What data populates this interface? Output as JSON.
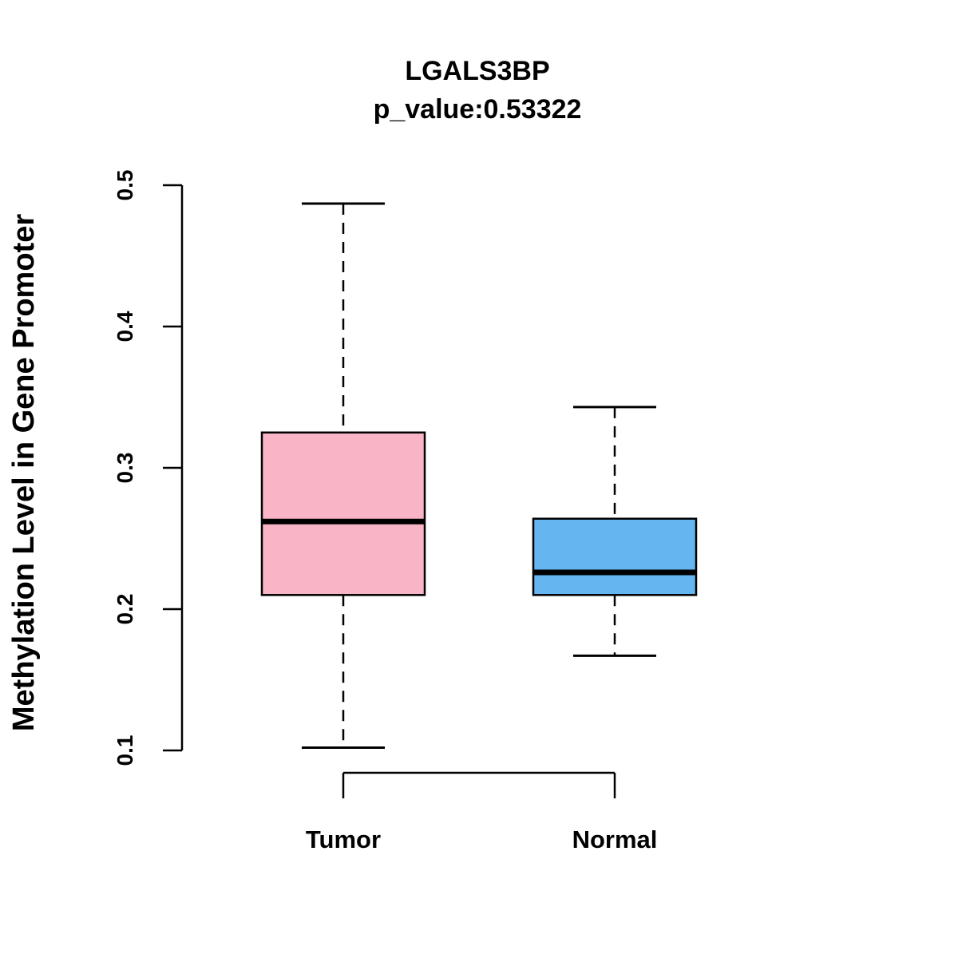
{
  "chart_data": {
    "type": "boxplot",
    "title": "LGALS3BP",
    "subtitle": "p_value:0.53322",
    "ylabel": "Methylation Level in Gene Promoter",
    "xlabel": "",
    "ylim": [
      0.1,
      0.5
    ],
    "yticks": [
      0.1,
      0.2,
      0.3,
      0.4,
      0.5
    ],
    "categories": [
      "Tumor",
      "Normal"
    ],
    "grid": false,
    "legend": "none",
    "series": [
      {
        "name": "Tumor",
        "color": "#F9B5C6",
        "lower_whisker": 0.102,
        "q1": 0.21,
        "median": 0.262,
        "q3": 0.325,
        "upper_whisker": 0.487
      },
      {
        "name": "Normal",
        "color": "#64B5F0",
        "lower_whisker": 0.167,
        "q1": 0.21,
        "median": 0.226,
        "q3": 0.264,
        "upper_whisker": 0.343
      }
    ]
  }
}
